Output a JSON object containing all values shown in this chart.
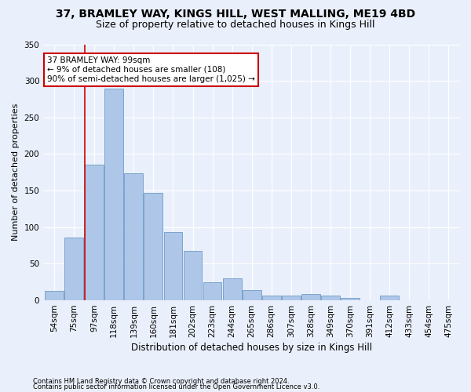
{
  "title1": "37, BRAMLEY WAY, KINGS HILL, WEST MALLING, ME19 4BD",
  "title2": "Size of property relative to detached houses in Kings Hill",
  "xlabel": "Distribution of detached houses by size in Kings Hill",
  "ylabel": "Number of detached properties",
  "footer1": "Contains HM Land Registry data © Crown copyright and database right 2024.",
  "footer2": "Contains public sector information licensed under the Open Government Licence v3.0.",
  "annotation_title": "37 BRAMLEY WAY: 99sqm",
  "annotation_line1": "← 9% of detached houses are smaller (108)",
  "annotation_line2": "90% of semi-detached houses are larger (1,025) →",
  "bar_color": "#aec6e8",
  "bar_edge_color": "#5a8fc0",
  "vline_color": "#cc0000",
  "vline_x_idx": 2,
  "categories": [
    "54sqm",
    "75sqm",
    "97sqm",
    "118sqm",
    "139sqm",
    "160sqm",
    "181sqm",
    "202sqm",
    "223sqm",
    "244sqm",
    "265sqm",
    "286sqm",
    "307sqm",
    "328sqm",
    "349sqm",
    "370sqm",
    "391sqm",
    "412sqm",
    "433sqm",
    "454sqm",
    "475sqm"
  ],
  "bin_edges": [
    54,
    75,
    97,
    118,
    139,
    160,
    181,
    202,
    223,
    244,
    265,
    286,
    307,
    328,
    349,
    370,
    391,
    412,
    433,
    454,
    475
  ],
  "values": [
    13,
    86,
    185,
    289,
    174,
    147,
    93,
    68,
    25,
    30,
    14,
    7,
    7,
    9,
    7,
    3,
    0,
    6,
    0,
    0,
    0
  ],
  "ylim": [
    0,
    350
  ],
  "yticks": [
    0,
    50,
    100,
    150,
    200,
    250,
    300,
    350
  ],
  "bg_color": "#eaf0fb",
  "grid_color": "#ffffff",
  "annotation_box_color": "#ffffff",
  "annotation_box_edge": "#cc0000",
  "title_fontsize": 10,
  "subtitle_fontsize": 9,
  "xlabel_fontsize": 8.5,
  "ylabel_fontsize": 8,
  "tick_fontsize": 7.5,
  "footer_fontsize": 6,
  "ann_fontsize": 7.5
}
